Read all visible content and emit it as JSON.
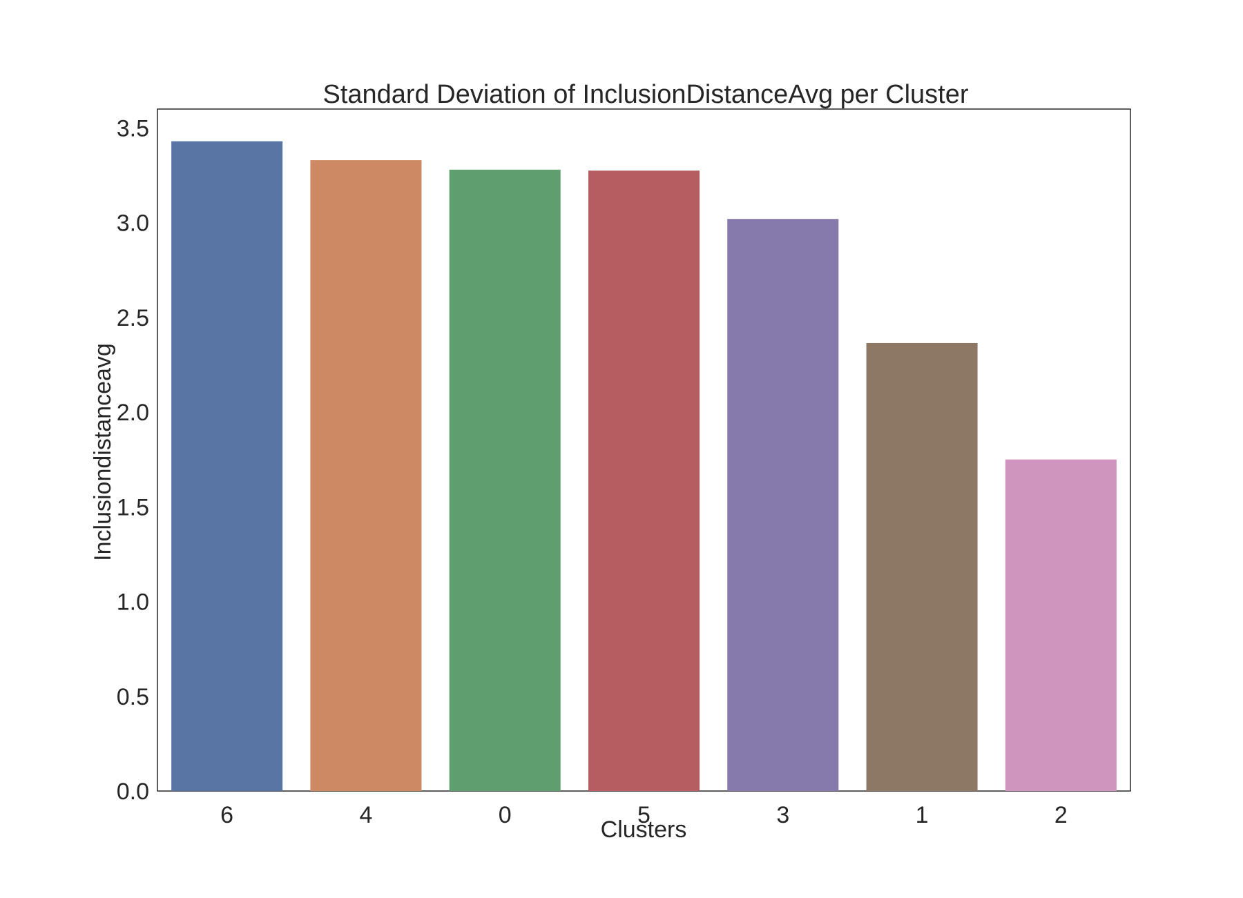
{
  "chart_data": {
    "type": "bar",
    "title": "Standard Deviation of InclusionDistanceAvg per Cluster",
    "xlabel": "Clusters",
    "ylabel": "Inclusiondistanceavg",
    "categories": [
      "6",
      "4",
      "0",
      "5",
      "3",
      "1",
      "2"
    ],
    "values": [
      3.43,
      3.33,
      3.28,
      3.275,
      3.02,
      2.365,
      1.75
    ],
    "colors": [
      "#5875a4",
      "#cc8963",
      "#5f9e6e",
      "#b55d60",
      "#857aab",
      "#8d7866",
      "#d095bf"
    ],
    "ylim": [
      0,
      3.6
    ],
    "yticks": [
      "0.0",
      "0.5",
      "1.0",
      "1.5",
      "2.0",
      "2.5",
      "3.0",
      "3.5"
    ],
    "grid": false,
    "legend": "none"
  }
}
